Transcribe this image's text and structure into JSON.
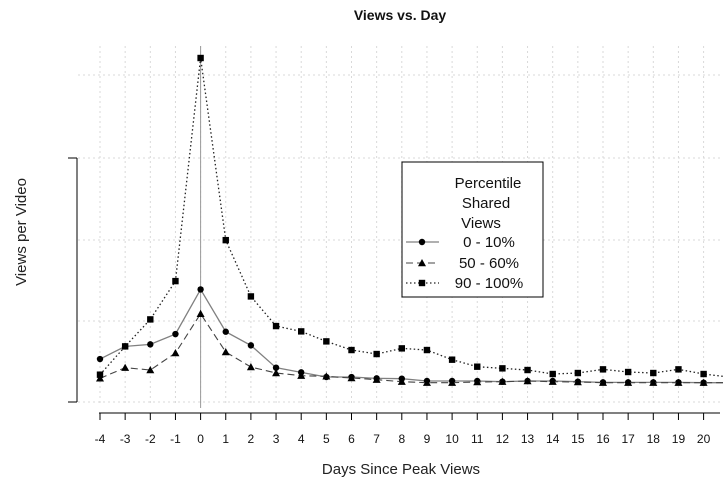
{
  "chart_data": {
    "type": "line",
    "title": "Views vs. Day",
    "xlabel": "Days Since Peak Views",
    "ylabel": "Views per Video",
    "x": [
      -4,
      -3,
      -2,
      -1,
      0,
      1,
      2,
      3,
      4,
      5,
      6,
      7,
      8,
      9,
      10,
      11,
      12,
      13,
      14,
      15,
      16,
      17,
      18,
      19,
      20,
      21
    ],
    "x_ticks": [
      "-4",
      "-3",
      "-2",
      "-1",
      "0",
      "1",
      "2",
      "3",
      "4",
      "5",
      "6",
      "7",
      "8",
      "9",
      "10",
      "11",
      "12",
      "13",
      "14",
      "15",
      "16",
      "17",
      "18",
      "19",
      "20"
    ],
    "xlim": [
      -4.5,
      21
    ],
    "ylim": [
      0,
      1
    ],
    "y_ticks_labeled": false,
    "grid": true,
    "peak_marker_x": 0,
    "legend": {
      "title_lines": [
        "Percentile",
        "Shared",
        "Views"
      ],
      "entries": [
        {
          "label": "0 - 10%",
          "series_index": 0
        },
        {
          "label": "50 - 60%",
          "series_index": 1
        },
        {
          "label": "90 - 100%",
          "series_index": 2
        }
      ],
      "placement": "center-right"
    },
    "series": [
      {
        "name": "0 - 10%",
        "marker": "circle",
        "line": "solid",
        "values": [
          0.096,
          0.134,
          0.14,
          0.171,
          0.305,
          0.178,
          0.137,
          0.07,
          0.056,
          0.042,
          0.042,
          0.038,
          0.037,
          0.03,
          0.03,
          0.03,
          0.028,
          0.03,
          0.03,
          0.028,
          0.026,
          0.026,
          0.026,
          0.026,
          0.025,
          0.025
        ]
      },
      {
        "name": "50 - 60%",
        "marker": "triangle",
        "line": "dashed",
        "values": [
          0.038,
          0.07,
          0.063,
          0.114,
          0.232,
          0.117,
          0.072,
          0.054,
          0.046,
          0.044,
          0.039,
          0.034,
          0.028,
          0.025,
          0.025,
          0.027,
          0.028,
          0.03,
          0.028,
          0.027,
          0.025,
          0.025,
          0.025,
          0.025,
          0.025,
          0.025
        ]
      },
      {
        "name": "90 - 100%",
        "marker": "square",
        "line": "dotted",
        "values": [
          0.049,
          0.134,
          0.215,
          0.33,
          1.0,
          0.453,
          0.284,
          0.195,
          0.179,
          0.149,
          0.123,
          0.111,
          0.128,
          0.123,
          0.094,
          0.073,
          0.068,
          0.063,
          0.051,
          0.054,
          0.065,
          0.057,
          0.054,
          0.065,
          0.051,
          0.042
        ]
      }
    ]
  }
}
